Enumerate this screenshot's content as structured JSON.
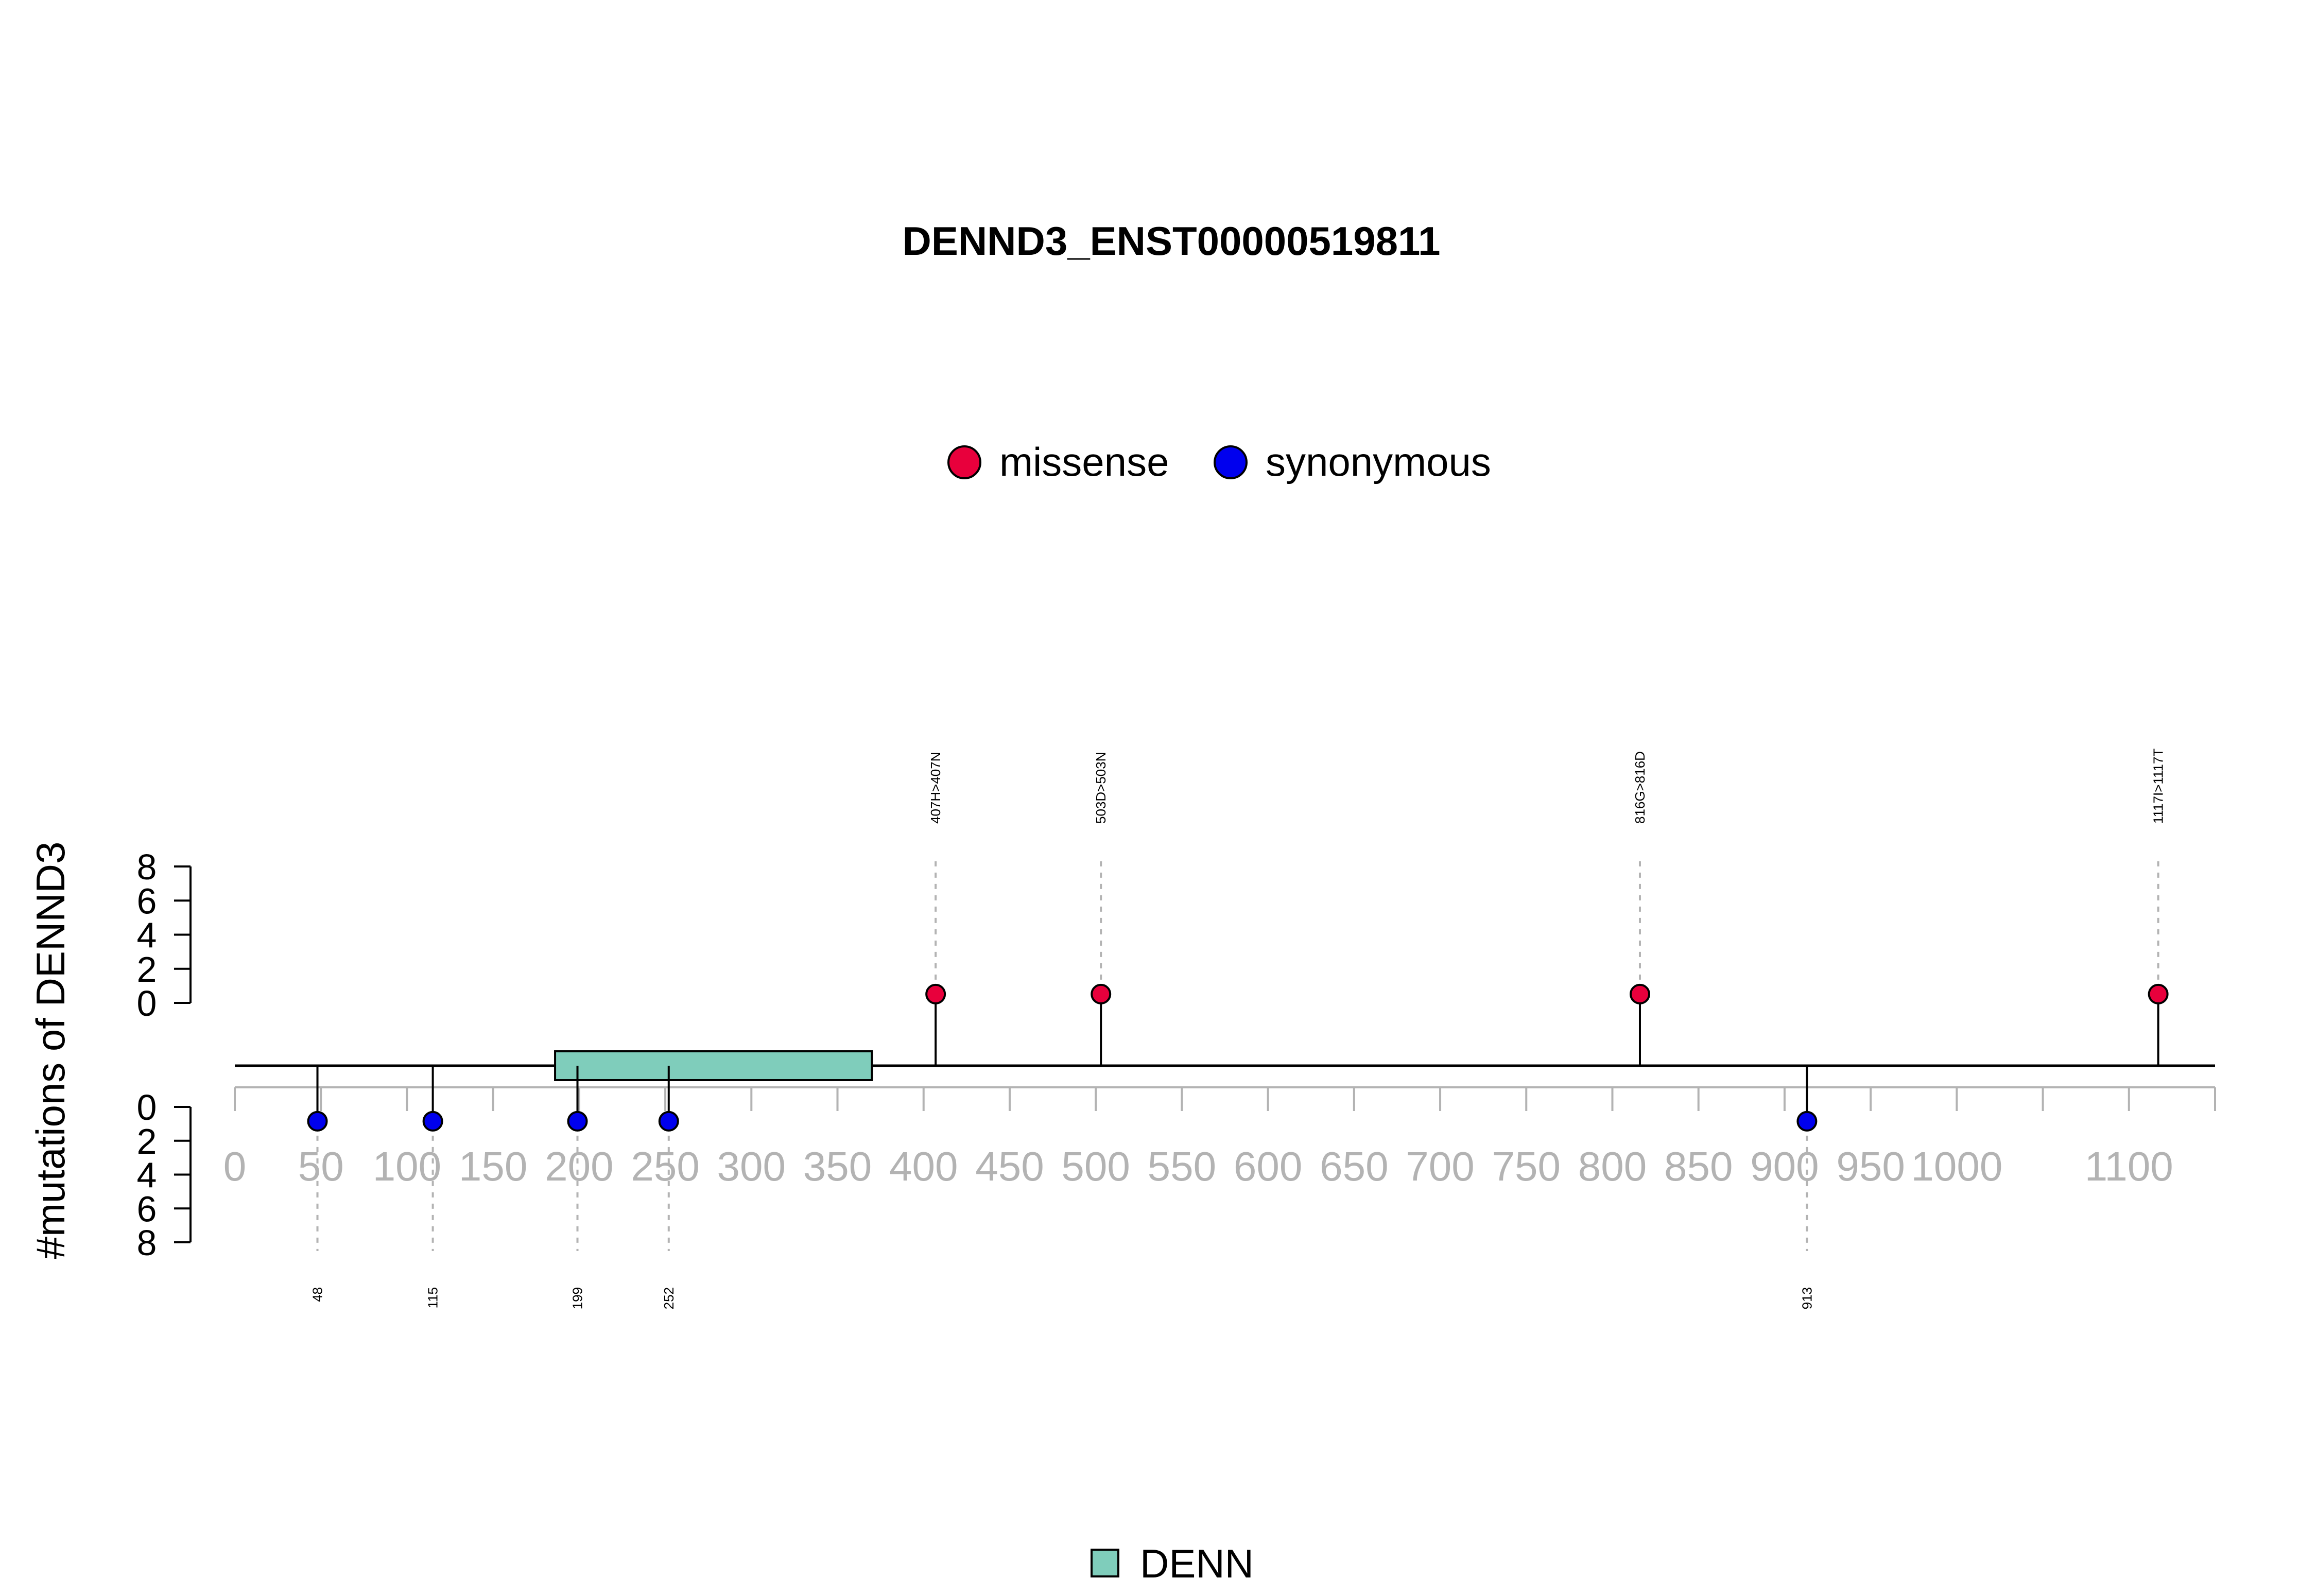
{
  "colors": {
    "missense": "#e8003c",
    "synonymous": "#0000ee",
    "domain_fill": "#7fcdbb",
    "axis_grey": "#b3b3b3",
    "dashed": "#b3b3b3"
  },
  "chart_data": {
    "type": "lollipop",
    "title": "DENND3_ENST00000519811",
    "ylabel": "#mutations of DENND3",
    "protein_length": 1150,
    "xlim": [
      0,
      1150
    ],
    "x_ticks": [
      0,
      50,
      100,
      150,
      200,
      250,
      300,
      350,
      400,
      450,
      500,
      550,
      600,
      650,
      700,
      750,
      800,
      850,
      900,
      950,
      1000,
      1100
    ],
    "x_tick_marks": [
      0,
      50,
      100,
      150,
      200,
      250,
      300,
      350,
      400,
      450,
      500,
      550,
      600,
      650,
      700,
      750,
      800,
      850,
      900,
      950,
      1000,
      1050,
      1100,
      1150
    ],
    "y_ticks_top": [
      "0",
      "2",
      "4",
      "6",
      "8"
    ],
    "y_ticks_bottom": [
      "0",
      "2",
      "4",
      "6",
      "8"
    ],
    "ylim": [
      0,
      8
    ],
    "legend": [
      {
        "label": "missense",
        "color": "#e8003c"
      },
      {
        "label": "synonymous",
        "color": "#0000ee"
      }
    ],
    "domains": [
      {
        "name": "DENN",
        "start": 186,
        "end": 370,
        "color": "#7fcdbb"
      }
    ],
    "domain_legend": [
      {
        "label": "DENN",
        "color": "#7fcdbb"
      }
    ],
    "mutations_top": [
      {
        "position": 407,
        "count": 1,
        "type": "missense",
        "label": "407H>407N"
      },
      {
        "position": 503,
        "count": 1,
        "type": "missense",
        "label": "503D>503N"
      },
      {
        "position": 816,
        "count": 1,
        "type": "missense",
        "label": "816G>816D"
      },
      {
        "position": 1117,
        "count": 1,
        "type": "missense",
        "label": "1117I>1117T"
      }
    ],
    "mutations_bottom": [
      {
        "position": 48,
        "count": 1,
        "type": "synonymous",
        "label": "48"
      },
      {
        "position": 115,
        "count": 1,
        "type": "synonymous",
        "label": "115"
      },
      {
        "position": 199,
        "count": 1,
        "type": "synonymous",
        "label": "199"
      },
      {
        "position": 252,
        "count": 1,
        "type": "synonymous",
        "label": "252"
      },
      {
        "position": 913,
        "count": 1,
        "type": "synonymous",
        "label": "913"
      }
    ]
  }
}
